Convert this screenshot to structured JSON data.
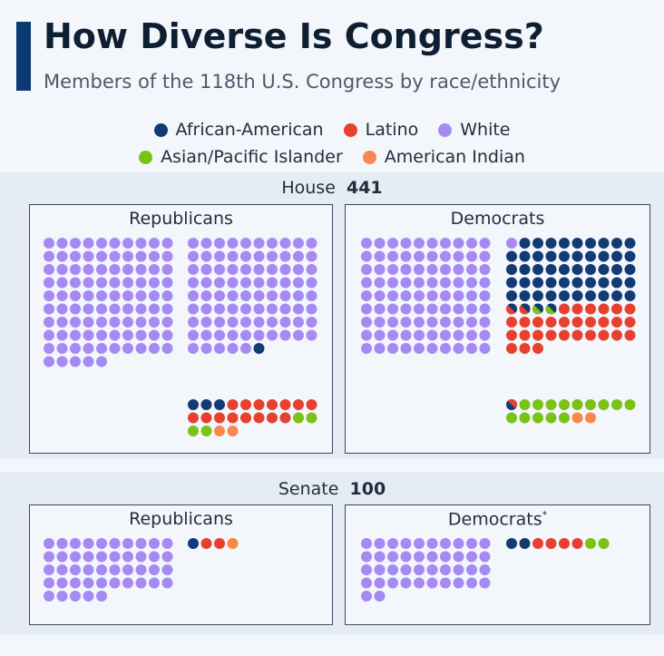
{
  "header": {
    "title": "How Diverse Is Congress?",
    "subtitle": "Members of the 118th U.S. Congress by race/ethnicity"
  },
  "legend": [
    {
      "label": "African-American",
      "color": "#133b73"
    },
    {
      "label": "Latino",
      "color": "#e8402e"
    },
    {
      "label": "White",
      "color": "#a58af4"
    },
    {
      "label": "Asian/Pacific Islander",
      "color": "#7ac214"
    },
    {
      "label": "American Indian",
      "color": "#f7874a"
    }
  ],
  "house": {
    "label": "House",
    "total": "441",
    "republicans": {
      "label": "Republicans"
    },
    "democrats": {
      "label": "Democrats"
    }
  },
  "senate": {
    "label": "Senate",
    "total": "100",
    "republicans": {
      "label": "Republicans"
    },
    "democrats": {
      "label": "Democrats",
      "note": "*"
    }
  },
  "chart_data": {
    "type": "waffle",
    "title": "How Diverse Is Congress?",
    "subtitle": "Members of the 118th U.S. Congress by race/ethnicity",
    "categories": [
      "African-American",
      "Latino",
      "White",
      "Asian/Pacific Islander",
      "American Indian"
    ],
    "chambers": [
      {
        "chamber": "House",
        "total": 441,
        "parties": [
          {
            "party": "Republicans",
            "white_block": 190,
            "counts": {
              "White": 180,
              "African-American": 1
            },
            "diverse_counts": {
              "African-American": 3,
              "Latino": 15,
              "Asian/Pacific Islander": 4,
              "American Indian": 2
            }
          },
          {
            "party": "Democrats",
            "white_block": 90,
            "counts": {
              "White": 1,
              "African-American": 49,
              "Latino": 29
            },
            "split_members": [
              {
                "categories": [
                  "African-American",
                  "Latino"
                ]
              },
              {
                "categories": [
                  "African-American",
                  "Latino"
                ]
              },
              {
                "categories": [
                  "African-American",
                  "Asian/Pacific Islander"
                ]
              },
              {
                "categories": [
                  "African-American",
                  "Asian/Pacific Islander"
                ]
              },
              {
                "categories": [
                  "Latino",
                  "African-American"
                ]
              }
            ],
            "diverse_counts": {
              "Asian/Pacific Islander": 14,
              "American Indian": 2
            }
          }
        ]
      },
      {
        "chamber": "Senate",
        "total": 100,
        "parties": [
          {
            "party": "Republicans",
            "counts": {
              "White": 45
            },
            "diverse_counts": {
              "African-American": 1,
              "Latino": 2,
              "American Indian": 1
            }
          },
          {
            "party": "Democrats",
            "note": "*",
            "counts": {
              "White": 42
            },
            "diverse_counts": {
              "African-American": 2,
              "Latino": 4,
              "Asian/Pacific Islander": 2
            }
          }
        ]
      }
    ]
  }
}
